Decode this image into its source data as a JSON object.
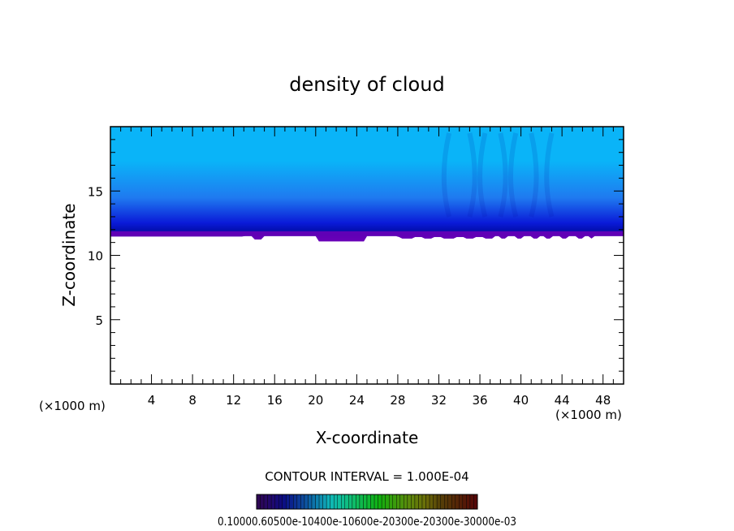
{
  "chart_data": {
    "type": "heatmap",
    "title": "density of cloud",
    "xlabel": "X-coordinate",
    "ylabel": "Z-coordinate",
    "x_unit_label_left": "(×1000 m)",
    "x_unit_label_right": "(×1000 m)",
    "xlim": [
      0,
      50
    ],
    "ylim": [
      0,
      20
    ],
    "x_ticks": [
      4,
      8,
      12,
      16,
      20,
      24,
      28,
      32,
      36,
      40,
      44,
      48
    ],
    "y_ticks": [
      5,
      10,
      15
    ],
    "cloud_base_z": 11.5,
    "cloud_top_z": 20,
    "contour_interval_text": "CONTOUR INTERVAL = 1.000E-04",
    "colorbar_labels_text": "0.10000.60500e-10400e-10600e-20300e-20300e-30000e-03",
    "colors": {
      "top": "#0ab4f8",
      "mid": "#1f7af0",
      "deep": "#0a1ad8",
      "core": "#000a9a",
      "base": "#6a00b8"
    }
  }
}
